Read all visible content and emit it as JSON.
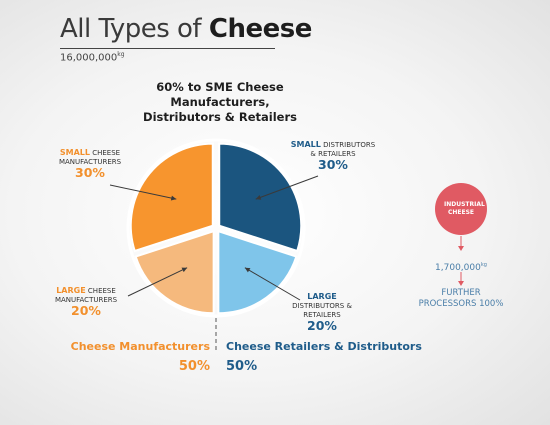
{
  "title": {
    "light": "All Types of ",
    "bold": "Cheese"
  },
  "subtitle": {
    "value": "16,000,000",
    "unit": "kg"
  },
  "sme_heading": "60% to SME Cheese Manufacturers, Distributors & Retailers",
  "labels": {
    "small_cheese": {
      "emph": "SMALL",
      "rest": " CHEESE MANUFACTURERS",
      "pct": "30%"
    },
    "small_dist": {
      "emph": "SMALL",
      "rest": " DISTRIBUTORS & RETAILERS",
      "pct": "30%"
    },
    "large_cheese": {
      "emph": "LARGE",
      "rest": " CHEESE MANUFACTURERS",
      "pct": "20%"
    },
    "large_dist": {
      "emph": "LARGE",
      "rest": " DISTRIBUTORS & RETAILERS",
      "pct": "20%"
    }
  },
  "bottom": {
    "left": {
      "label": "Cheese Manufacturers",
      "pct": "50%"
    },
    "right": {
      "label": "Cheese Retailers & Distributors",
      "pct": "50%"
    }
  },
  "industrial": {
    "circle_label": "INDUSTRIAL CHEESE",
    "value": "1,700,000",
    "unit": "kg",
    "further": "FURTHER PROCESSORS 100%"
  },
  "colors": {
    "small_cheese": "#f7952e",
    "large_cheese": "#f5b97d",
    "small_dist": "#1b557f",
    "large_dist": "#7fc5ea",
    "industrial": "#e05a63"
  },
  "chart_data": {
    "type": "pie",
    "title": "All Types of Cheese",
    "subtitle": "16,000,000kg",
    "slices": [
      {
        "name": "SMALL DISTRIBUTORS & RETAILERS",
        "value": 30,
        "color": "#1b557f"
      },
      {
        "name": "LARGE DISTRIBUTORS & RETAILERS",
        "value": 20,
        "color": "#7fc5ea"
      },
      {
        "name": "LARGE CHEESE MANUFACTURERS",
        "value": 20,
        "color": "#f5b97d"
      },
      {
        "name": "SMALL CHEESE MANUFACTURERS",
        "value": 30,
        "color": "#f7952e"
      }
    ]
  }
}
